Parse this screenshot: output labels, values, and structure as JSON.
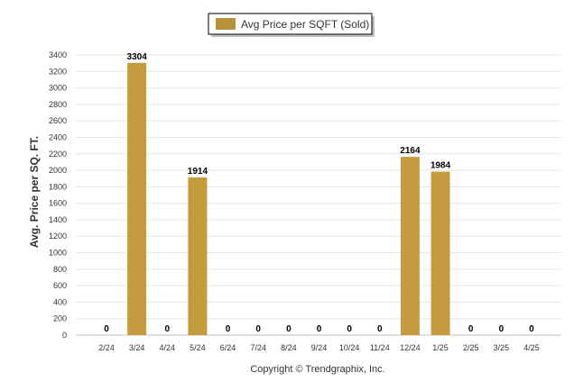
{
  "legend": {
    "label": "Avg Price per SQFT (Sold)"
  },
  "footer": {
    "copyright": "Copyright © Trendgraphix, Inc."
  },
  "colors": {
    "bar": "#c49c3f",
    "legend_swatch": "#b8933a"
  },
  "chart_data": {
    "type": "bar",
    "title": "",
    "ylabel": "Avg. Price per SQ. FT.",
    "xlabel": "",
    "ylim": [
      0,
      3400
    ],
    "yticks": [
      0,
      200,
      400,
      600,
      800,
      1000,
      1200,
      1400,
      1600,
      1800,
      2000,
      2200,
      2400,
      2600,
      2800,
      3000,
      3200,
      3400
    ],
    "categories": [
      "2/24",
      "3/24",
      "4/24",
      "5/24",
      "6/24",
      "7/24",
      "8/24",
      "9/24",
      "10/24",
      "11/24",
      "12/24",
      "1/25",
      "2/25",
      "3/25",
      "4/25"
    ],
    "series": [
      {
        "name": "Avg Price per SQFT (Sold)",
        "values": [
          0,
          3304,
          0,
          1914,
          0,
          0,
          0,
          0,
          0,
          0,
          2164,
          1984,
          0,
          0,
          0
        ]
      }
    ],
    "grid": true,
    "legend_position": "top-center"
  }
}
